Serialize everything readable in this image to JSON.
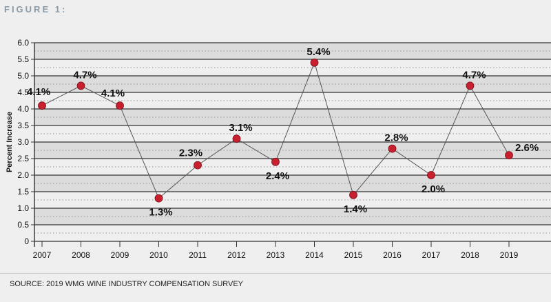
{
  "figure_label": "FIGURE 1:",
  "source": "SOURCE: 2019 WMG WINE INDUSTRY COMPENSATION SURVEY",
  "chart_data": {
    "type": "line",
    "title": "",
    "xlabel": "",
    "ylabel": "Percent Increase",
    "ylim": [
      0,
      6.0
    ],
    "yticks": [
      "0",
      "0.5",
      "1.0",
      "1.5",
      "2.0",
      "2.5",
      "3.0",
      "3.5",
      "4.0",
      "4.5",
      "5.0",
      "5.5",
      "6.0"
    ],
    "categories": [
      "2007",
      "2008",
      "2009",
      "2010",
      "2011",
      "2012",
      "2013",
      "2014",
      "2015",
      "2016",
      "2017",
      "2018",
      "2019"
    ],
    "series": [
      {
        "values": [
          4.1,
          4.7,
          4.1,
          1.3,
          2.3,
          3.1,
          2.4,
          5.4,
          1.4,
          2.8,
          2.0,
          4.7,
          2.6
        ],
        "labels": [
          "4.1%",
          "4.7%",
          "4.1%",
          "1.3%",
          "2.3%",
          "3.1%",
          "2.4%",
          "5.4%",
          "1.4%",
          "2.8%",
          "2.0%",
          "4.7%",
          "2.6%"
        ]
      }
    ],
    "grid": true,
    "legend": "none",
    "colors": {
      "marker": "#c8202f",
      "line": "#555555",
      "band": "#dcdcdc",
      "plot_bg": "#efefef"
    }
  }
}
